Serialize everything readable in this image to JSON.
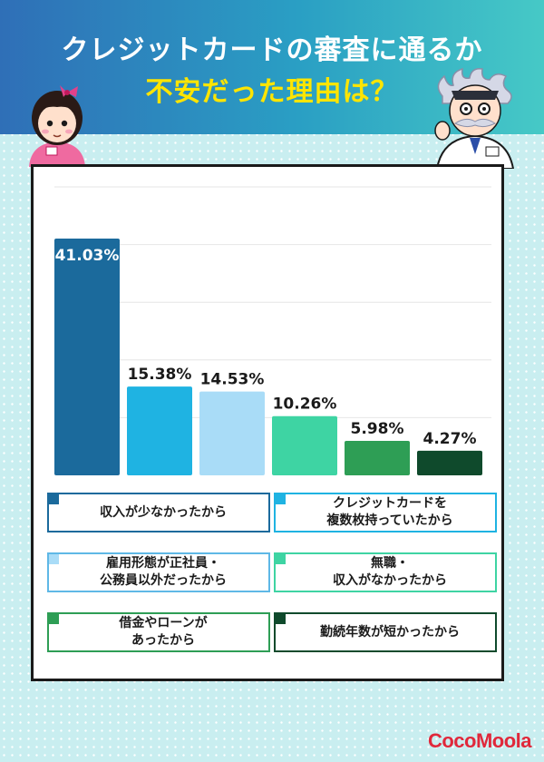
{
  "header": {
    "title_line1": "クレジットカードの審査に通るか",
    "title_line2": "不安だった理由は？"
  },
  "chart_data": {
    "type": "bar",
    "categories": [
      "収入が少なかったから",
      "クレジットカードを\n複数枚持っていたから",
      "雇用形態が正社員・\n公務員以外だったから",
      "無職・\n収入がなかったから",
      "借金やローンが\nあったから",
      "勤続年数が短かったから"
    ],
    "values": [
      41.03,
      15.38,
      14.53,
      10.26,
      5.98,
      4.27
    ],
    "labels": [
      "41.03%",
      "15.38%",
      "14.53%",
      "10.26%",
      "5.98%",
      "4.27%"
    ],
    "colors": [
      "#1b6a9c",
      "#1fb3e2",
      "#a9dcf7",
      "#3ed4a3",
      "#2e9e55",
      "#0f4a2c"
    ],
    "ylim": [
      0,
      50
    ],
    "grid": true,
    "legend_position": "bottom"
  },
  "brand": {
    "logo": "CocoMoola"
  }
}
